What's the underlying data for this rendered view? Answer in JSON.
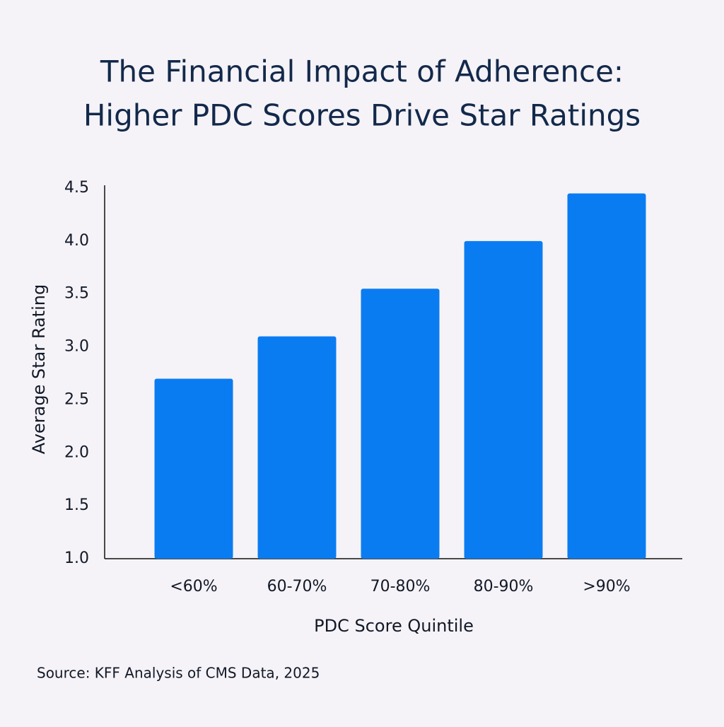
{
  "chart_data": {
    "type": "bar",
    "title": [
      "The Financial Impact of Adherence:",
      "Higher PDC Scores Drive Star Ratings"
    ],
    "x_label": "PDC Score Quintile",
    "y_label": "Average Star Rating",
    "source": "Source: KFF Analysis of CMS Data, 2025",
    "categories": [
      "<60%",
      "60-70%",
      "70-80%",
      "80-90%",
      ">90%"
    ],
    "values": [
      2.7,
      3.1,
      3.55,
      4.0,
      4.45
    ],
    "color": "#0a7cf2",
    "ylim": [
      1,
      4.5
    ],
    "yticks": [
      {
        "value": 1,
        "label": "1.0"
      },
      1.5,
      {
        "value": 2,
        "label": "2.0"
      },
      2.5,
      {
        "value": 3,
        "label": "3.0"
      },
      3.5,
      {
        "value": 4,
        "label": "4.0"
      },
      4.5
    ],
    "grid": false
  }
}
